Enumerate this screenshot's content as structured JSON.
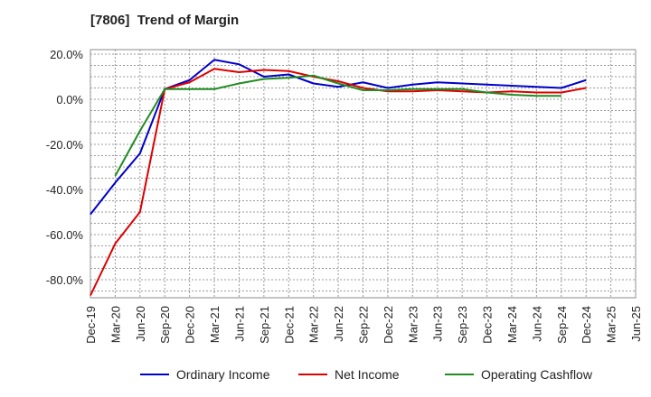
{
  "title": "[7806]  Trend of Margin",
  "chart_data": {
    "type": "line",
    "title": "[7806]  Trend of Margin",
    "xlabel": "",
    "ylabel": "",
    "ylim": [
      -88,
      22
    ],
    "grid": true,
    "legend_position": "bottom",
    "y_ticks": [
      "20.0%",
      "0.0%",
      "-20.0%",
      "-40.0%",
      "-60.0%",
      "-80.0%"
    ],
    "y_tick_values": [
      20,
      0,
      -20,
      -40,
      -60,
      -80
    ],
    "categories": [
      "Dec-19",
      "Mar-20",
      "Jun-20",
      "Sep-20",
      "Dec-20",
      "Mar-21",
      "Jun-21",
      "Sep-21",
      "Dec-21",
      "Mar-22",
      "Jun-22",
      "Sep-22",
      "Dec-22",
      "Mar-23",
      "Jun-23",
      "Sep-23",
      "Dec-23",
      "Mar-24",
      "Jun-24",
      "Sep-24",
      "Dec-24",
      "Mar-25",
      "Jun-25"
    ],
    "series": [
      {
        "name": "Ordinary Income",
        "color": "#0000cc",
        "values": [
          -51.0,
          -37.0,
          -24.0,
          4.5,
          8.5,
          17.5,
          15.5,
          10.0,
          11.0,
          7.0,
          5.5,
          7.5,
          5.0,
          6.5,
          7.5,
          7.0,
          6.5,
          6.0,
          5.5,
          5.0,
          8.5,
          null,
          null
        ]
      },
      {
        "name": "Net Income",
        "color": "#dd0000",
        "values": [
          -87.0,
          -64.0,
          -50.0,
          4.5,
          7.5,
          13.5,
          12.0,
          13.0,
          12.5,
          10.0,
          8.0,
          5.0,
          3.5,
          3.5,
          4.0,
          3.5,
          3.0,
          3.5,
          3.0,
          3.0,
          5.0,
          null,
          null
        ]
      },
      {
        "name": "Operating Cashflow",
        "color": "#228b22",
        "values": [
          null,
          -34.0,
          -14.0,
          4.5,
          4.5,
          4.5,
          7.0,
          9.0,
          9.5,
          10.5,
          7.0,
          4.0,
          4.0,
          4.5,
          4.5,
          4.5,
          3.0,
          2.0,
          1.5,
          1.5,
          null,
          null,
          null
        ]
      }
    ]
  }
}
